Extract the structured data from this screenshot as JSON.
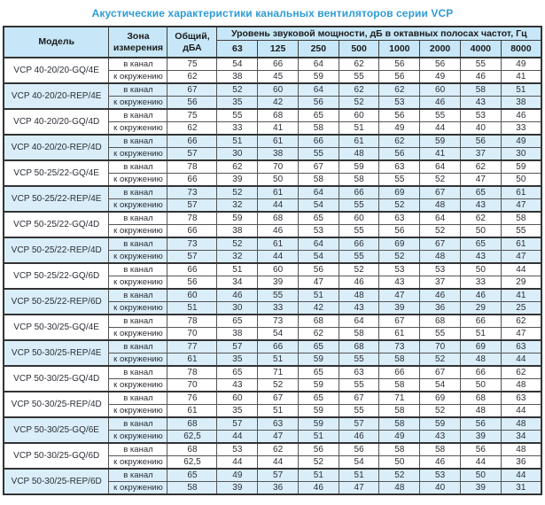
{
  "title": "Акустические характеристики канальных вентиляторов  серии VCP",
  "colors": {
    "title_accent": "#2e9cd6",
    "header_background": "#c7e7f8",
    "shaded_row_background": "#daeefa",
    "border": "#333333"
  },
  "table": {
    "headers": {
      "model": "Модель",
      "zone": "Зона измерения",
      "total": "Общий, дБА",
      "octave": "Уровень звуковой мощности, дБ в октавных полосах частот, Гц",
      "frequencies": [
        "63",
        "125",
        "250",
        "500",
        "1000",
        "2000",
        "4000",
        "8000"
      ]
    },
    "zone_labels": [
      "в канал",
      "к окружению"
    ],
    "rows": [
      {
        "model": "VCP 40-20/20-GQ/4E",
        "shaded": false,
        "in_channel": {
          "total": "75",
          "bands": [
            54,
            66,
            64,
            62,
            56,
            56,
            55,
            49
          ]
        },
        "to_ambient": {
          "total": "62",
          "bands": [
            38,
            45,
            59,
            55,
            56,
            49,
            46,
            41
          ]
        }
      },
      {
        "model": "VCP 40-20/20-REP/4E",
        "shaded": true,
        "in_channel": {
          "total": "67",
          "bands": [
            52,
            60,
            64,
            62,
            62,
            60,
            58,
            51
          ]
        },
        "to_ambient": {
          "total": "56",
          "bands": [
            35,
            42,
            56,
            52,
            53,
            46,
            43,
            38
          ]
        }
      },
      {
        "model": "VCP 40-20/20-GQ/4D",
        "shaded": false,
        "in_channel": {
          "total": "75",
          "bands": [
            55,
            68,
            65,
            60,
            56,
            55,
            53,
            46
          ]
        },
        "to_ambient": {
          "total": "62",
          "bands": [
            33,
            41,
            58,
            51,
            49,
            44,
            40,
            33
          ]
        }
      },
      {
        "model": "VCP 40-20/20-REP/4D",
        "shaded": true,
        "in_channel": {
          "total": "66",
          "bands": [
            51,
            61,
            66,
            61,
            62,
            59,
            56,
            49
          ]
        },
        "to_ambient": {
          "total": "57",
          "bands": [
            30,
            38,
            55,
            48,
            56,
            41,
            37,
            30
          ]
        }
      },
      {
        "model": "VCP 50-25/22-GQ/4E",
        "shaded": false,
        "in_channel": {
          "total": "78",
          "bands": [
            62,
            70,
            67,
            59,
            63,
            64,
            62,
            59
          ]
        },
        "to_ambient": {
          "total": "66",
          "bands": [
            39,
            50,
            58,
            58,
            55,
            52,
            47,
            50
          ]
        }
      },
      {
        "model": "VCP 50-25/22-REP/4E",
        "shaded": true,
        "in_channel": {
          "total": "73",
          "bands": [
            52,
            61,
            64,
            66,
            69,
            67,
            65,
            61
          ]
        },
        "to_ambient": {
          "total": "57",
          "bands": [
            32,
            44,
            54,
            55,
            52,
            48,
            43,
            47
          ]
        }
      },
      {
        "model": "VCP 50-25/22-GQ/4D",
        "shaded": false,
        "in_channel": {
          "total": "78",
          "bands": [
            59,
            68,
            65,
            60,
            63,
            64,
            62,
            58
          ]
        },
        "to_ambient": {
          "total": "66",
          "bands": [
            38,
            46,
            53,
            55,
            56,
            52,
            50,
            55
          ]
        }
      },
      {
        "model": "VCP 50-25/22-REP/4D",
        "shaded": true,
        "in_channel": {
          "total": "73",
          "bands": [
            52,
            61,
            64,
            66,
            69,
            67,
            65,
            61
          ]
        },
        "to_ambient": {
          "total": "57",
          "bands": [
            32,
            44,
            54,
            55,
            52,
            48,
            43,
            47
          ]
        }
      },
      {
        "model": "VCP 50-25/22-GQ/6D",
        "shaded": false,
        "in_channel": {
          "total": "66",
          "bands": [
            51,
            60,
            56,
            52,
            53,
            53,
            50,
            44
          ]
        },
        "to_ambient": {
          "total": "56",
          "bands": [
            34,
            39,
            47,
            46,
            43,
            37,
            33,
            29
          ]
        }
      },
      {
        "model": "VCP 50-25/22-REP/6D",
        "shaded": true,
        "in_channel": {
          "total": "60",
          "bands": [
            46,
            55,
            51,
            48,
            47,
            46,
            46,
            41
          ]
        },
        "to_ambient": {
          "total": "51",
          "bands": [
            30,
            33,
            42,
            43,
            39,
            36,
            29,
            25
          ]
        }
      },
      {
        "model": "VCP 50-30/25-GQ/4E",
        "shaded": false,
        "in_channel": {
          "total": "78",
          "bands": [
            65,
            73,
            68,
            64,
            67,
            68,
            66,
            62
          ]
        },
        "to_ambient": {
          "total": "70",
          "bands": [
            38,
            54,
            62,
            58,
            61,
            55,
            51,
            47
          ]
        }
      },
      {
        "model": "VCP 50-30/25-REP/4E",
        "shaded": true,
        "in_channel": {
          "total": "77",
          "bands": [
            57,
            66,
            65,
            68,
            73,
            70,
            69,
            63
          ]
        },
        "to_ambient": {
          "total": "61",
          "bands": [
            35,
            51,
            59,
            55,
            58,
            52,
            48,
            44
          ]
        }
      },
      {
        "model": "VCP 50-30/25-GQ/4D",
        "shaded": false,
        "in_channel": {
          "total": "78",
          "bands": [
            65,
            71,
            65,
            63,
            66,
            67,
            66,
            62
          ]
        },
        "to_ambient": {
          "total": "70",
          "bands": [
            43,
            52,
            59,
            55,
            58,
            54,
            50,
            48
          ]
        }
      },
      {
        "model": "VCP 50-30/25-REP/4D",
        "shaded": false,
        "in_channel": {
          "total": "76",
          "bands": [
            60,
            67,
            65,
            67,
            71,
            69,
            68,
            63
          ]
        },
        "to_ambient": {
          "total": "61",
          "bands": [
            35,
            51,
            59,
            55,
            58,
            52,
            48,
            44
          ]
        }
      },
      {
        "model": "VCP 50-30/25-GQ/6E",
        "shaded": true,
        "in_channel": {
          "total": "68",
          "bands": [
            57,
            63,
            59,
            57,
            58,
            59,
            56,
            48
          ]
        },
        "to_ambient": {
          "total": "62,5",
          "bands": [
            44,
            47,
            51,
            46,
            49,
            43,
            39,
            34
          ]
        }
      },
      {
        "model": "VCP 50-30/25-GQ/6D",
        "shaded": false,
        "in_channel": {
          "total": "68",
          "bands": [
            53,
            62,
            56,
            56,
            58,
            58,
            56,
            48
          ]
        },
        "to_ambient": {
          "total": "62,5",
          "bands": [
            44,
            44,
            52,
            54,
            50,
            46,
            44,
            36
          ]
        }
      },
      {
        "model": "VCP 50-30/25-REP/6D",
        "shaded": true,
        "in_channel": {
          "total": "65",
          "bands": [
            49,
            57,
            51,
            51,
            52,
            53,
            50,
            44
          ]
        },
        "to_ambient": {
          "total": "58",
          "bands": [
            39,
            36,
            46,
            47,
            48,
            40,
            39,
            31
          ]
        }
      }
    ]
  }
}
